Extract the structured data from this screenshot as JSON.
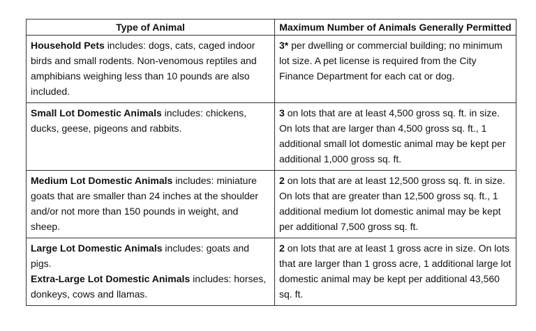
{
  "table": {
    "headers": [
      "Type of Animal",
      "Maximum Number of Animals Generally Permitted"
    ],
    "rows": [
      {
        "animals": [
          {
            "name": "Household Pets",
            "description": "includes: dogs, cats, caged indoor birds and small rodents. Non-venomous reptiles and amphibians weighing less than 10 pounds are also included."
          }
        ],
        "limit": {
          "count": "3*",
          "text": "per dwelling or commercial building; no minimum lot size. A pet license is required from the City Finance Department for each cat or dog."
        }
      },
      {
        "animals": [
          {
            "name": "Small Lot Domestic Animals",
            "description": "includes: chickens, ducks, geese, pigeons and rabbits."
          }
        ],
        "limit": {
          "count": "3",
          "text": "on lots that are at least 4,500 gross sq. ft. in size. On lots that are larger than 4,500 gross sq. ft., 1 additional small lot domestic animal may be kept per additional 1,000 gross sq. ft."
        }
      },
      {
        "animals": [
          {
            "name": "Medium Lot Domestic Animals",
            "description": "includes: miniature goats that are smaller than 24 inches at the shoulder and/or not more than 150 pounds in weight, and sheep."
          }
        ],
        "limit": {
          "count": "2",
          "text": "on lots that are at least 12,500 gross sq. ft. in size. On lots that are greater than 12,500 gross sq. ft., 1 additional medium lot domestic animal may be kept per additional 7,500 gross sq. ft."
        }
      },
      {
        "animals": [
          {
            "name": "Large Lot Domestic Animals",
            "description": "includes: goats and pigs."
          },
          {
            "name": "Extra-Large Lot Domestic Animals",
            "description": "includes: horses, donkeys, cows and llamas."
          }
        ],
        "limit": {
          "count": "2",
          "text": "on lots that are at least 1 gross acre in size. On lots that are larger than 1 gross acre, 1 additional large lot domestic animal may be kept per additional 43,560 sq. ft."
        }
      }
    ]
  }
}
